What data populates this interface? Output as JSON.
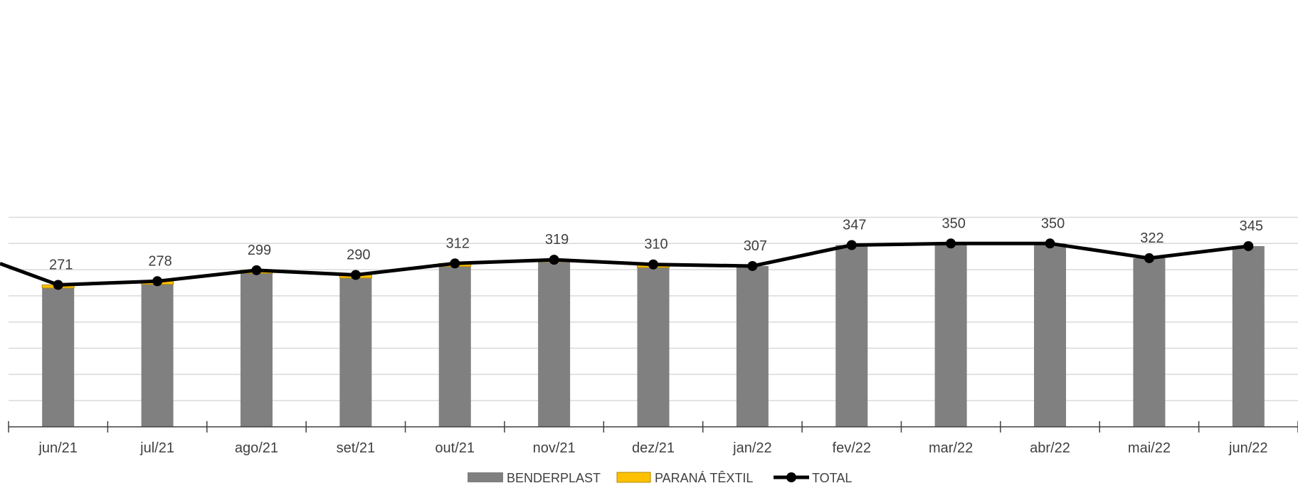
{
  "chart_data": {
    "type": "bar",
    "stacked": true,
    "categories": [
      "jun/21",
      "jul/21",
      "ago/21",
      "set/21",
      "out/21",
      "nov/21",
      "dez/21",
      "jan/22",
      "fev/22",
      "mar/22",
      "abr/22",
      "mai/22",
      "jun/22"
    ],
    "series": [
      {
        "name": "BENDERPLAST",
        "type": "bar",
        "color": "#808080",
        "values": [
          265,
          272,
          293,
          284,
          306,
          315,
          304,
          307,
          347,
          350,
          350,
          322,
          345
        ]
      },
      {
        "name": "PARANÁ TÊXTIL",
        "type": "bar",
        "color": "#FFC000",
        "values": [
          6,
          6,
          6,
          6,
          6,
          4,
          6,
          0,
          0,
          0,
          0,
          0,
          0
        ]
      },
      {
        "name": "TOTAL",
        "type": "line",
        "color": "#000000",
        "values": [
          271,
          278,
          299,
          290,
          312,
          319,
          310,
          307,
          347,
          350,
          350,
          322,
          345
        ]
      }
    ],
    "data_labels": [
      "271",
      "278",
      "299",
      "290",
      "312",
      "319",
      "310",
      "307",
      "347",
      "350",
      "350",
      "322",
      "345"
    ],
    "ylim": [
      0,
      400
    ],
    "grid": true,
    "legend": "bottom"
  }
}
